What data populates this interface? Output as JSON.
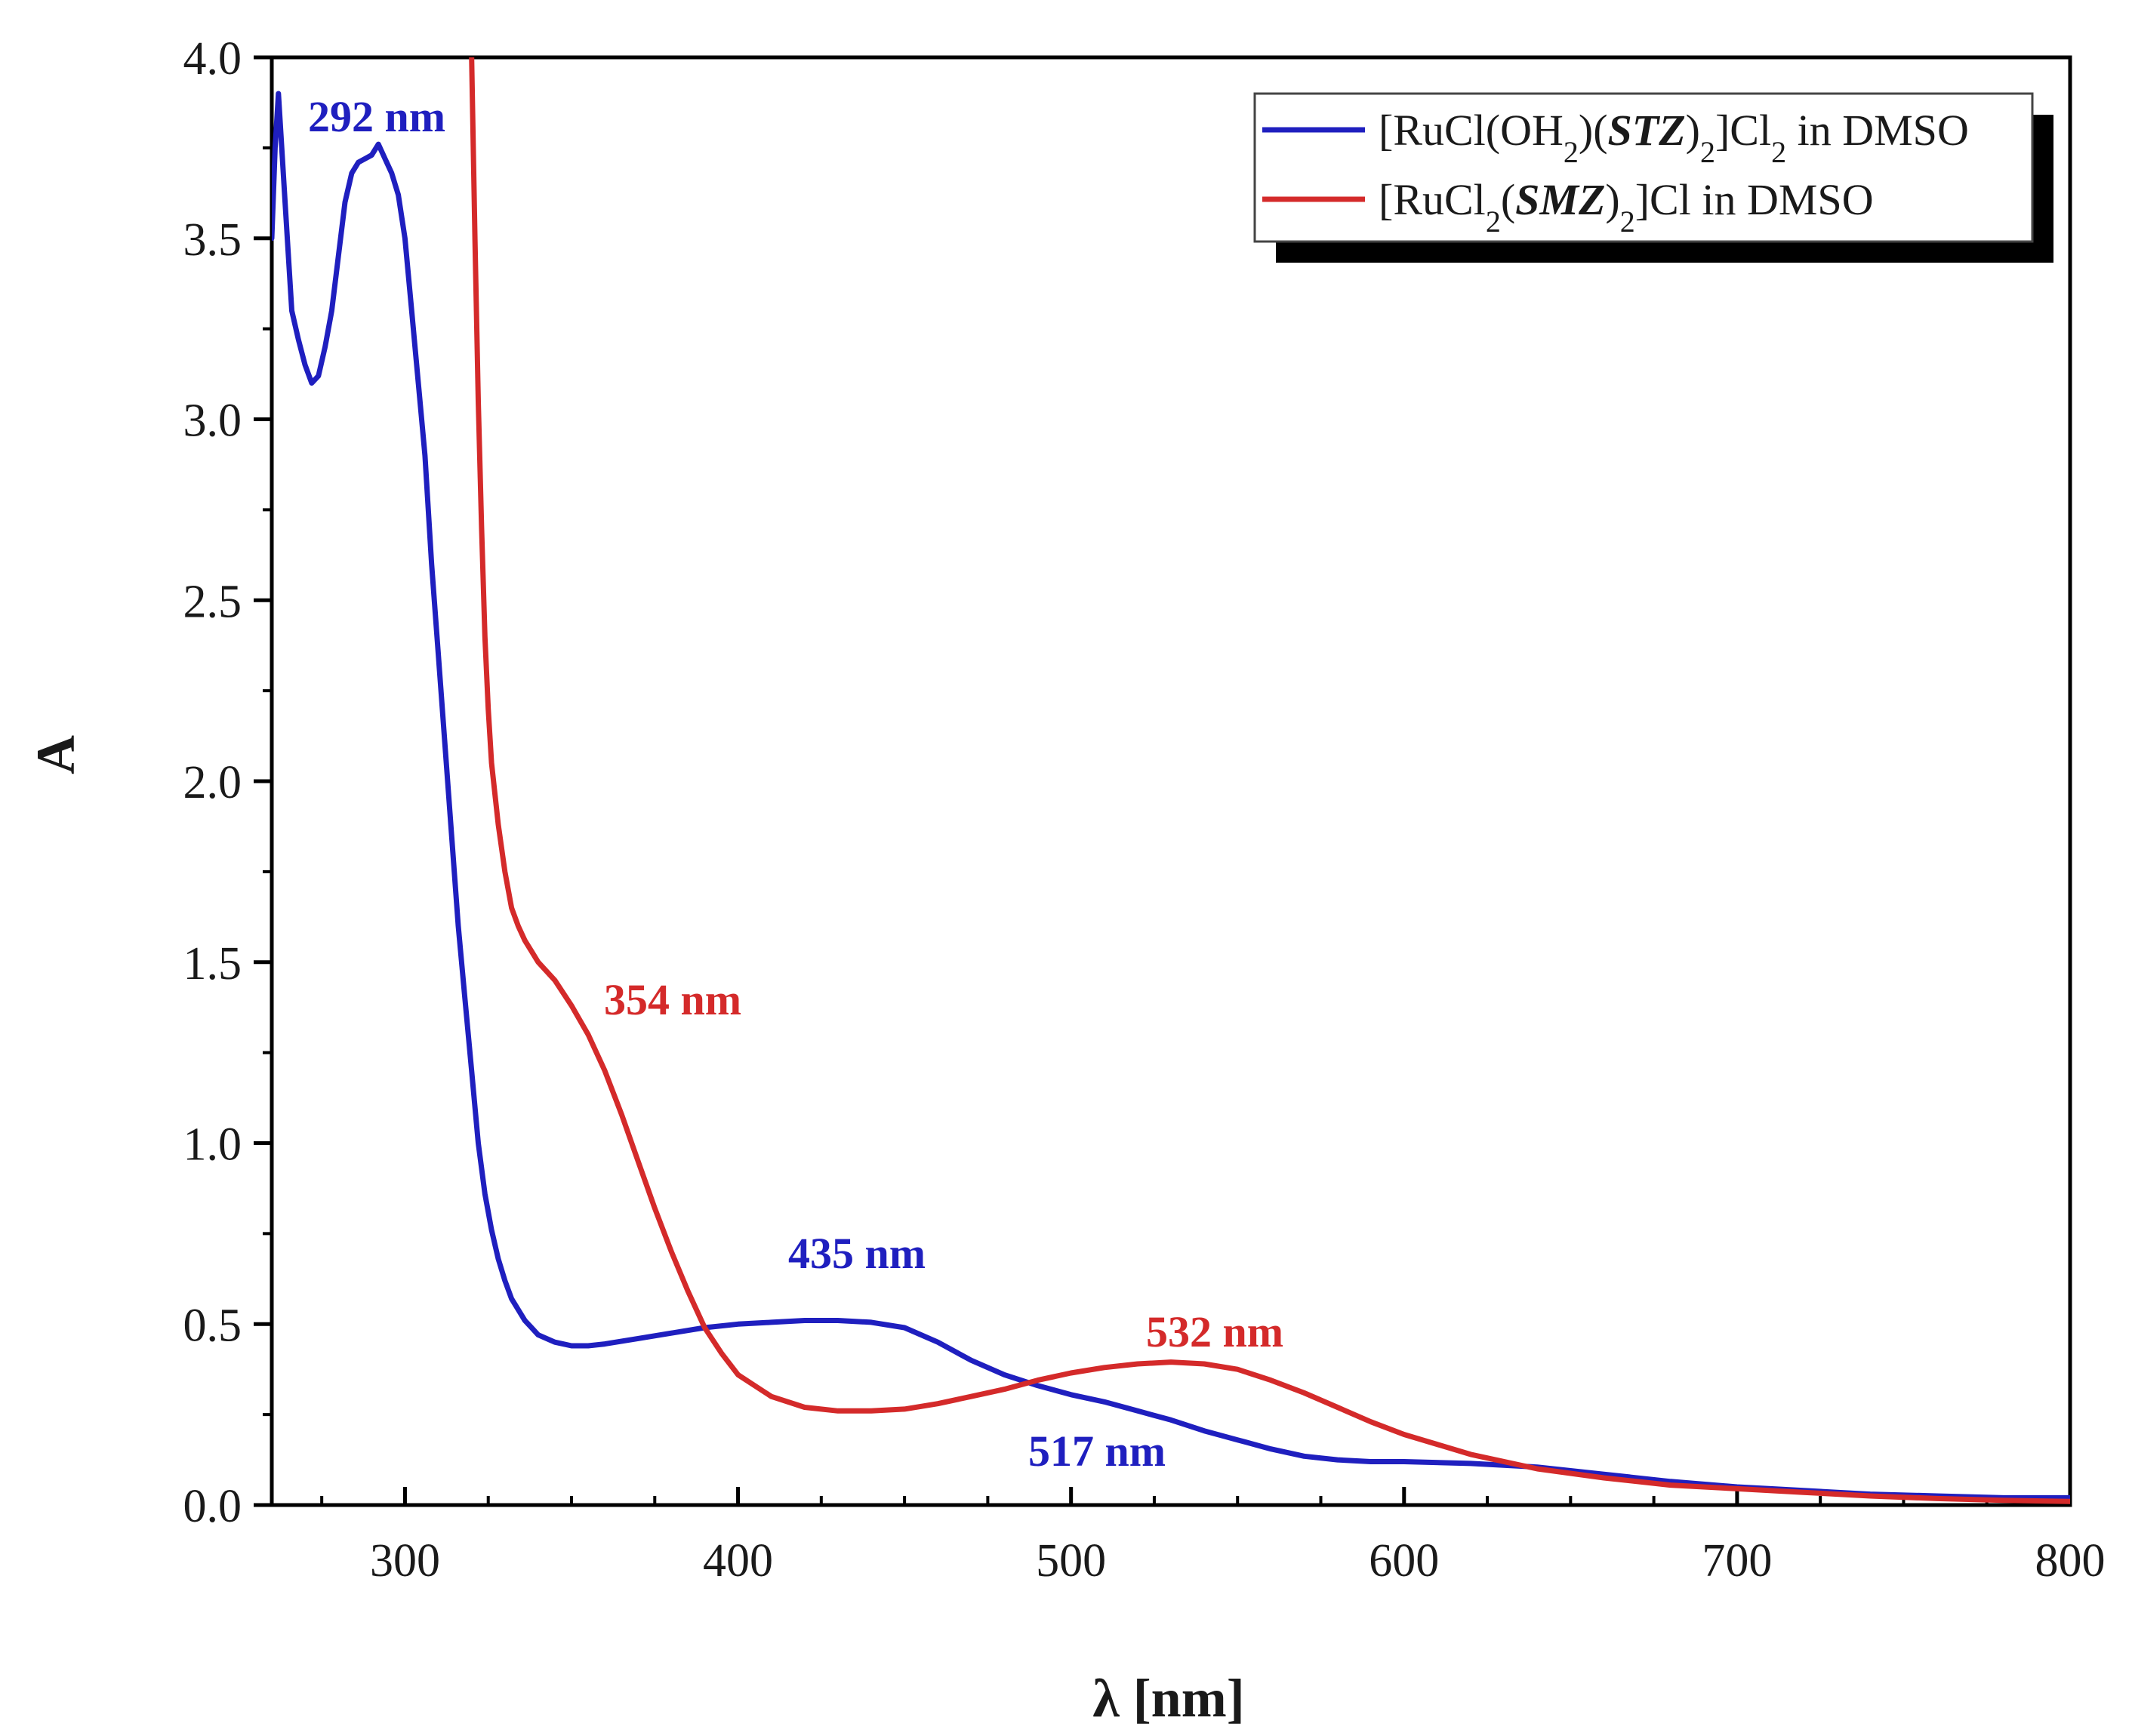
{
  "chart_data": {
    "type": "line",
    "title": "",
    "xlabel": "λ [nm]",
    "ylabel": "A",
    "xlim": [
      260,
      800
    ],
    "ylim": [
      0.0,
      4.0
    ],
    "x_ticks": [
      300,
      400,
      500,
      600,
      700,
      800
    ],
    "x_tick_labels": [
      "300",
      "400",
      "500",
      "600",
      "700",
      "800"
    ],
    "y_ticks": [
      0.0,
      0.5,
      1.0,
      1.5,
      2.0,
      2.5,
      3.0,
      3.5,
      4.0
    ],
    "y_tick_labels": [
      "0.0",
      "0.5",
      "1.0",
      "1.5",
      "2.0",
      "2.5",
      "3.0",
      "3.5",
      "4.0"
    ],
    "grid": false,
    "legend_position": "top-right",
    "series": [
      {
        "name": "[RuCl(OH2)(STZ)2]Cl2 in DMSO",
        "legend": {
          "pre": "[RuCl(OH",
          "sub1": "2",
          "mid1": ")(",
          "bold": "STZ",
          "mid2": ")",
          "sub2": "2",
          "mid3": "]Cl",
          "sub3": "2",
          "post": " in DMSO"
        },
        "color": "#1f1fbf",
        "x": [
          260,
          261,
          262,
          264,
          266,
          268,
          270,
          272,
          274,
          276,
          278,
          280,
          282,
          284,
          286,
          288,
          290,
          292,
          294,
          296,
          298,
          300,
          302,
          304,
          306,
          308,
          310,
          312,
          314,
          316,
          318,
          320,
          322,
          324,
          326,
          328,
          330,
          332,
          334,
          336,
          338,
          340,
          345,
          350,
          355,
          360,
          370,
          380,
          390,
          400,
          410,
          420,
          430,
          440,
          450,
          460,
          470,
          480,
          490,
          500,
          510,
          520,
          530,
          540,
          550,
          560,
          570,
          580,
          590,
          600,
          620,
          640,
          660,
          680,
          700,
          720,
          740,
          760,
          780,
          800
        ],
        "y": [
          3.5,
          3.75,
          3.9,
          3.6,
          3.3,
          3.22,
          3.15,
          3.1,
          3.12,
          3.2,
          3.3,
          3.45,
          3.6,
          3.68,
          3.71,
          3.72,
          3.73,
          3.76,
          3.72,
          3.68,
          3.62,
          3.5,
          3.3,
          3.1,
          2.9,
          2.6,
          2.35,
          2.1,
          1.85,
          1.6,
          1.4,
          1.2,
          1.0,
          0.86,
          0.76,
          0.68,
          0.62,
          0.57,
          0.54,
          0.51,
          0.49,
          0.47,
          0.45,
          0.44,
          0.44,
          0.445,
          0.46,
          0.475,
          0.49,
          0.5,
          0.505,
          0.51,
          0.51,
          0.505,
          0.49,
          0.45,
          0.4,
          0.36,
          0.33,
          0.305,
          0.285,
          0.26,
          0.235,
          0.205,
          0.18,
          0.155,
          0.135,
          0.125,
          0.12,
          0.12,
          0.115,
          0.105,
          0.085,
          0.065,
          0.05,
          0.04,
          0.03,
          0.025,
          0.02,
          0.02
        ]
      },
      {
        "name": "[RuCl2(SMZ)2]Cl in DMSO",
        "legend": {
          "pre": "[RuCl",
          "sub1": "2",
          "mid1": "(",
          "bold": "SMZ",
          "mid2": ")",
          "sub2": "2",
          "mid3": "]Cl",
          "sub3": "",
          "post": " in DMSO"
        },
        "color": "#d42a2a",
        "x": [
          320,
          321,
          322,
          323,
          324,
          325,
          326,
          328,
          330,
          332,
          334,
          336,
          338,
          340,
          345,
          350,
          355,
          360,
          365,
          370,
          375,
          380,
          385,
          390,
          395,
          400,
          410,
          420,
          430,
          440,
          450,
          460,
          470,
          480,
          490,
          500,
          510,
          520,
          530,
          540,
          550,
          560,
          570,
          580,
          590,
          600,
          620,
          640,
          660,
          680,
          700,
          720,
          740,
          760,
          780,
          800
        ],
        "y": [
          4.0,
          3.5,
          3.05,
          2.7,
          2.4,
          2.2,
          2.05,
          1.88,
          1.75,
          1.65,
          1.6,
          1.56,
          1.53,
          1.5,
          1.45,
          1.38,
          1.3,
          1.2,
          1.08,
          0.95,
          0.82,
          0.7,
          0.59,
          0.49,
          0.42,
          0.36,
          0.3,
          0.27,
          0.26,
          0.26,
          0.265,
          0.28,
          0.3,
          0.32,
          0.345,
          0.365,
          0.38,
          0.39,
          0.395,
          0.39,
          0.375,
          0.345,
          0.31,
          0.27,
          0.23,
          0.195,
          0.14,
          0.1,
          0.075,
          0.055,
          0.045,
          0.035,
          0.025,
          0.018,
          0.013,
          0.01
        ]
      }
    ],
    "annotations": [
      {
        "text": "292 nm",
        "series": 0
      },
      {
        "text": "354 nm",
        "series": 1
      },
      {
        "text": "435 nm",
        "series": 0
      },
      {
        "text": "532 nm",
        "series": 1
      },
      {
        "text": "517 nm",
        "series": 0
      }
    ]
  }
}
